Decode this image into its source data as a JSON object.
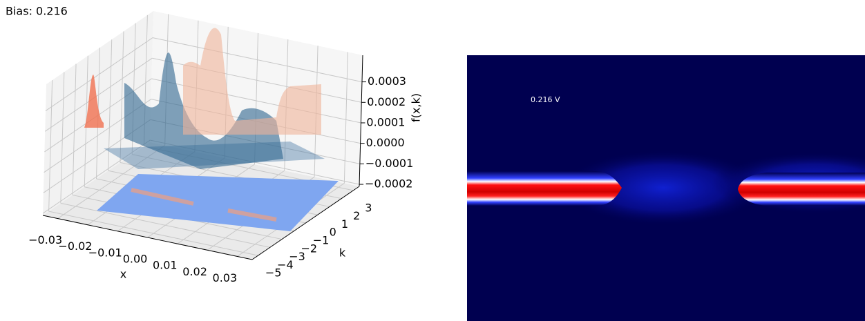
{
  "title": "Bias: 0.216",
  "chart_data": [
    {
      "type": "surface3d",
      "xlabel": "x",
      "ylabel": "k",
      "zlabel": "f(x,k)",
      "xlim": [
        -0.035,
        0.035
      ],
      "xticks": [
        {
          "value": -0.03,
          "label": "−0.03"
        },
        {
          "value": -0.02,
          "label": "−0.02"
        },
        {
          "value": -0.01,
          "label": "−0.01"
        },
        {
          "value": 0,
          "label": "0.00"
        },
        {
          "value": 0.01,
          "label": "0.01"
        },
        {
          "value": 0.02,
          "label": "0.02"
        },
        {
          "value": 0.03,
          "label": "0.03"
        }
      ],
      "ylim": [
        -5.5,
        3.5
      ],
      "yticks": [
        {
          "value": -5,
          "label": "−5"
        },
        {
          "value": -4,
          "label": "−4"
        },
        {
          "value": -3,
          "label": "−3"
        },
        {
          "value": -2,
          "label": "−2"
        },
        {
          "value": -1,
          "label": "−1"
        },
        0,
        1,
        2,
        3
      ],
      "zlim": [
        -0.00021,
        0.00043
      ],
      "zticks": [
        {
          "value": -0.0002,
          "label": "−0.0002"
        },
        {
          "value": -0.0001,
          "label": "−0.0001"
        },
        {
          "value": 0,
          "label": "0.0000"
        },
        0.0001,
        0.0002,
        0.0003
      ],
      "grid": true
    },
    {
      "type": "heatmap",
      "annotation": "0.216 V"
    }
  ]
}
